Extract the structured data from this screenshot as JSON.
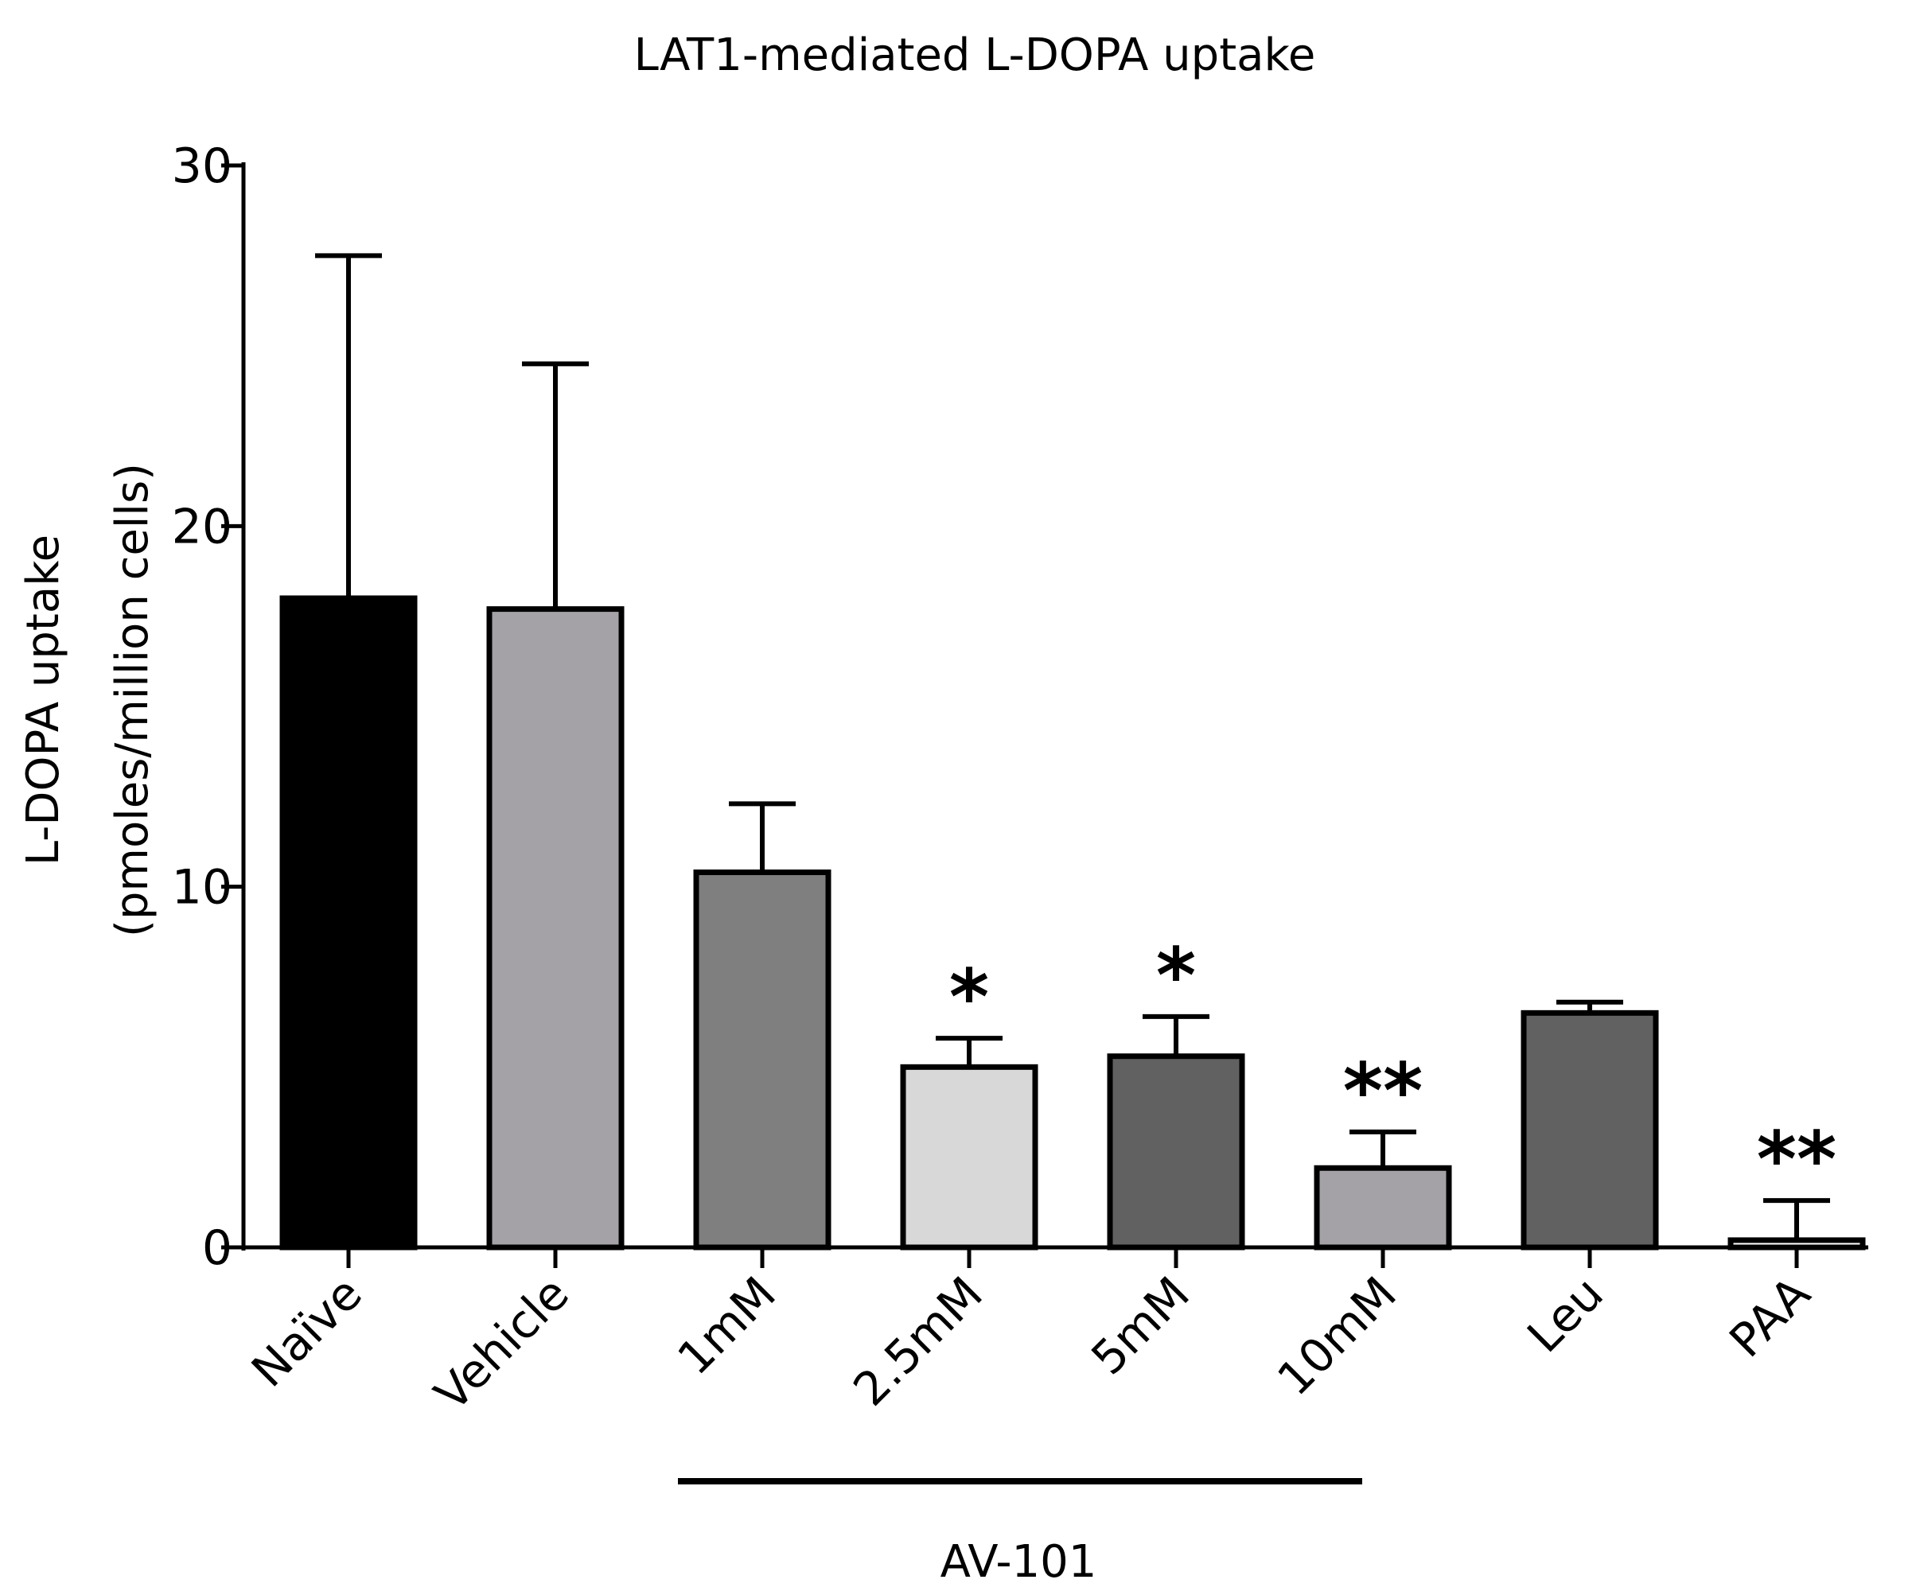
{
  "chart_data": {
    "type": "bar",
    "title": "LAT1-mediated L-DOPA uptake",
    "xlabel": "",
    "ylabel_lines": [
      "L-DOPA uptake",
      "(pmoles/million cells)"
    ],
    "ylim": [
      0,
      30
    ],
    "yticks": [
      0,
      10,
      20,
      30
    ],
    "categories": [
      "Naïve",
      "Vehicle",
      "1mM",
      "2.5mM",
      "5mM",
      "10mM",
      "Leu",
      "PAA"
    ],
    "values": [
      18.0,
      17.7,
      10.4,
      5.0,
      5.3,
      2.2,
      6.5,
      0.2
    ],
    "errors": [
      9.5,
      6.8,
      1.9,
      0.8,
      1.1,
      1.0,
      0.3,
      1.1
    ],
    "significance": [
      "",
      "",
      "",
      "*",
      "*",
      "**",
      "",
      "**"
    ],
    "bar_colors": [
      "#000000",
      "#a4a2a7",
      "#7f7f7f",
      "#d8d8d8",
      "#616161",
      "#a4a2a7",
      "#616161",
      "#ffffff"
    ],
    "group": {
      "label": "AV-101",
      "from": "1mM",
      "to": "10mM"
    }
  }
}
